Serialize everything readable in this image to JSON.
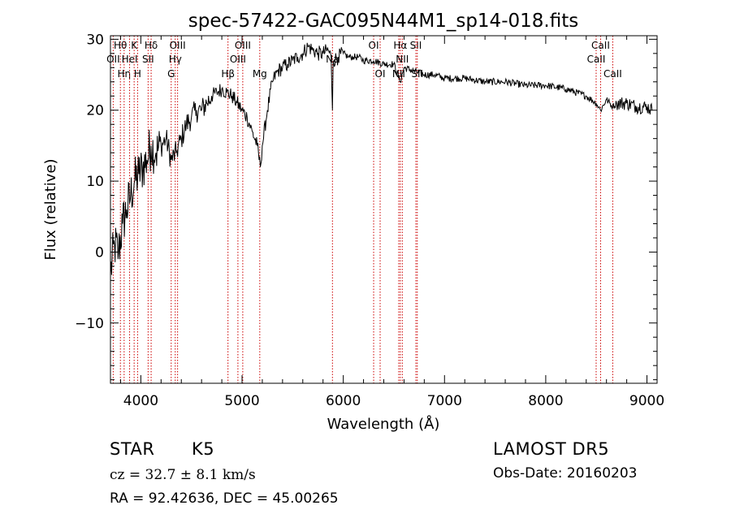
{
  "chart_data": {
    "type": "line",
    "title": "spec-57422-GAC095N44M1_sp14-018.fits",
    "xlabel": "Wavelength (Å)",
    "ylabel": "Flux (relative)",
    "xlim": [
      3700,
      9100
    ],
    "ylim": [
      -18.5,
      30.5
    ],
    "x_ticks": [
      4000,
      5000,
      6000,
      7000,
      8000,
      9000
    ],
    "y_ticks": [
      -10,
      0,
      10,
      20,
      30
    ],
    "x_tick_labels": [
      "4000",
      "5000",
      "6000",
      "7000",
      "8000",
      "9000"
    ],
    "y_tick_labels": [
      "−10",
      "0",
      "10",
      "20",
      "30"
    ],
    "grid": false,
    "series": [
      {
        "color": "#000000",
        "x": [
          3700,
          3740,
          3780,
          3820,
          3860,
          3900,
          3940,
          3980,
          4020,
          4060,
          4100,
          4150,
          4200,
          4250,
          4300,
          4350,
          4400,
          4450,
          4500,
          4550,
          4600,
          4650,
          4700,
          4750,
          4800,
          4850,
          4900,
          4950,
          5000,
          5050,
          5100,
          5150,
          5180,
          5200,
          5250,
          5300,
          5350,
          5400,
          5450,
          5500,
          5550,
          5600,
          5650,
          5700,
          5750,
          5800,
          5850,
          5880,
          5893,
          5900,
          5950,
          6000,
          6050,
          6100,
          6150,
          6200,
          6300,
          6400,
          6500,
          6563,
          6600,
          6700,
          6800,
          6900,
          7000,
          7200,
          7400,
          7600,
          7800,
          8000,
          8200,
          8400,
          8498,
          8542,
          8600,
          8662,
          8700,
          8800,
          8900,
          9000,
          9050
        ],
        "y": [
          -3,
          1,
          0,
          4,
          6,
          8,
          10,
          11,
          12,
          13,
          15,
          14,
          15,
          16,
          13,
          14,
          16,
          18,
          19,
          20,
          20,
          21,
          22,
          22.5,
          23,
          22.5,
          22,
          21,
          20,
          19,
          17,
          15,
          12,
          15,
          20,
          24,
          25.5,
          26,
          26.5,
          27,
          27.5,
          28,
          29,
          28.5,
          28,
          28,
          28.5,
          27.5,
          20,
          27,
          27.5,
          28,
          27.5,
          27.5,
          27.5,
          27,
          27,
          26.5,
          26.5,
          24,
          26,
          25.5,
          25,
          25,
          24.5,
          24.5,
          24,
          24,
          23.5,
          23.5,
          23,
          22,
          21,
          20,
          21.5,
          20.5,
          21,
          21,
          20.5,
          20.5,
          20
        ]
      }
    ],
    "line_marks": [
      {
        "x": 3727,
        "label": "OII",
        "row": 2
      },
      {
        "x": 3798,
        "label": "Hθ",
        "row": 1
      },
      {
        "x": 3835,
        "label": "Hη",
        "row": 3
      },
      {
        "x": 3889,
        "label": "HeI",
        "row": 2
      },
      {
        "x": 3934,
        "label": "K",
        "row": 1
      },
      {
        "x": 3968,
        "label": "H",
        "row": 3
      },
      {
        "x": 4072,
        "label": "SII",
        "row": 2
      },
      {
        "x": 4102,
        "label": "Hδ",
        "row": 1
      },
      {
        "x": 4300,
        "label": "G",
        "row": 3
      },
      {
        "x": 4340,
        "label": "Hγ",
        "row": 2
      },
      {
        "x": 4363,
        "label": "OIII",
        "row": 1
      },
      {
        "x": 4861,
        "label": "Hβ",
        "row": 3
      },
      {
        "x": 4959,
        "label": "OIII",
        "row": 2
      },
      {
        "x": 5007,
        "label": "OIII",
        "row": 1
      },
      {
        "x": 5175,
        "label": "Mg",
        "row": 3
      },
      {
        "x": 5893,
        "label": "Na",
        "row": 2
      },
      {
        "x": 6300,
        "label": "OI",
        "row": 1
      },
      {
        "x": 6364,
        "label": "OI",
        "row": 3
      },
      {
        "x": 6548,
        "label": "NII",
        "row": 3
      },
      {
        "x": 6563,
        "label": "Hα",
        "row": 1
      },
      {
        "x": 6583,
        "label": "NII",
        "row": 2
      },
      {
        "x": 6717,
        "label": "SII",
        "row": 1
      },
      {
        "x": 6731,
        "label": "SII",
        "row": 3
      },
      {
        "x": 8498,
        "label": "CaII",
        "row": 2
      },
      {
        "x": 8542,
        "label": "CaII",
        "row": 1
      },
      {
        "x": 8662,
        "label": "CaII",
        "row": 3
      }
    ]
  },
  "info": {
    "object_class": "STAR",
    "subclass": "K5",
    "survey": "LAMOST DR5",
    "velocity": "cz = 32.7 ± 8.1 km/s",
    "obs_date": "Obs-Date: 20160203",
    "coords": "RA =  92.42636, DEC =  45.00265"
  },
  "colors": {
    "spectrum": "#000000",
    "line_marker": "#cc0000",
    "axes": "#000000"
  }
}
